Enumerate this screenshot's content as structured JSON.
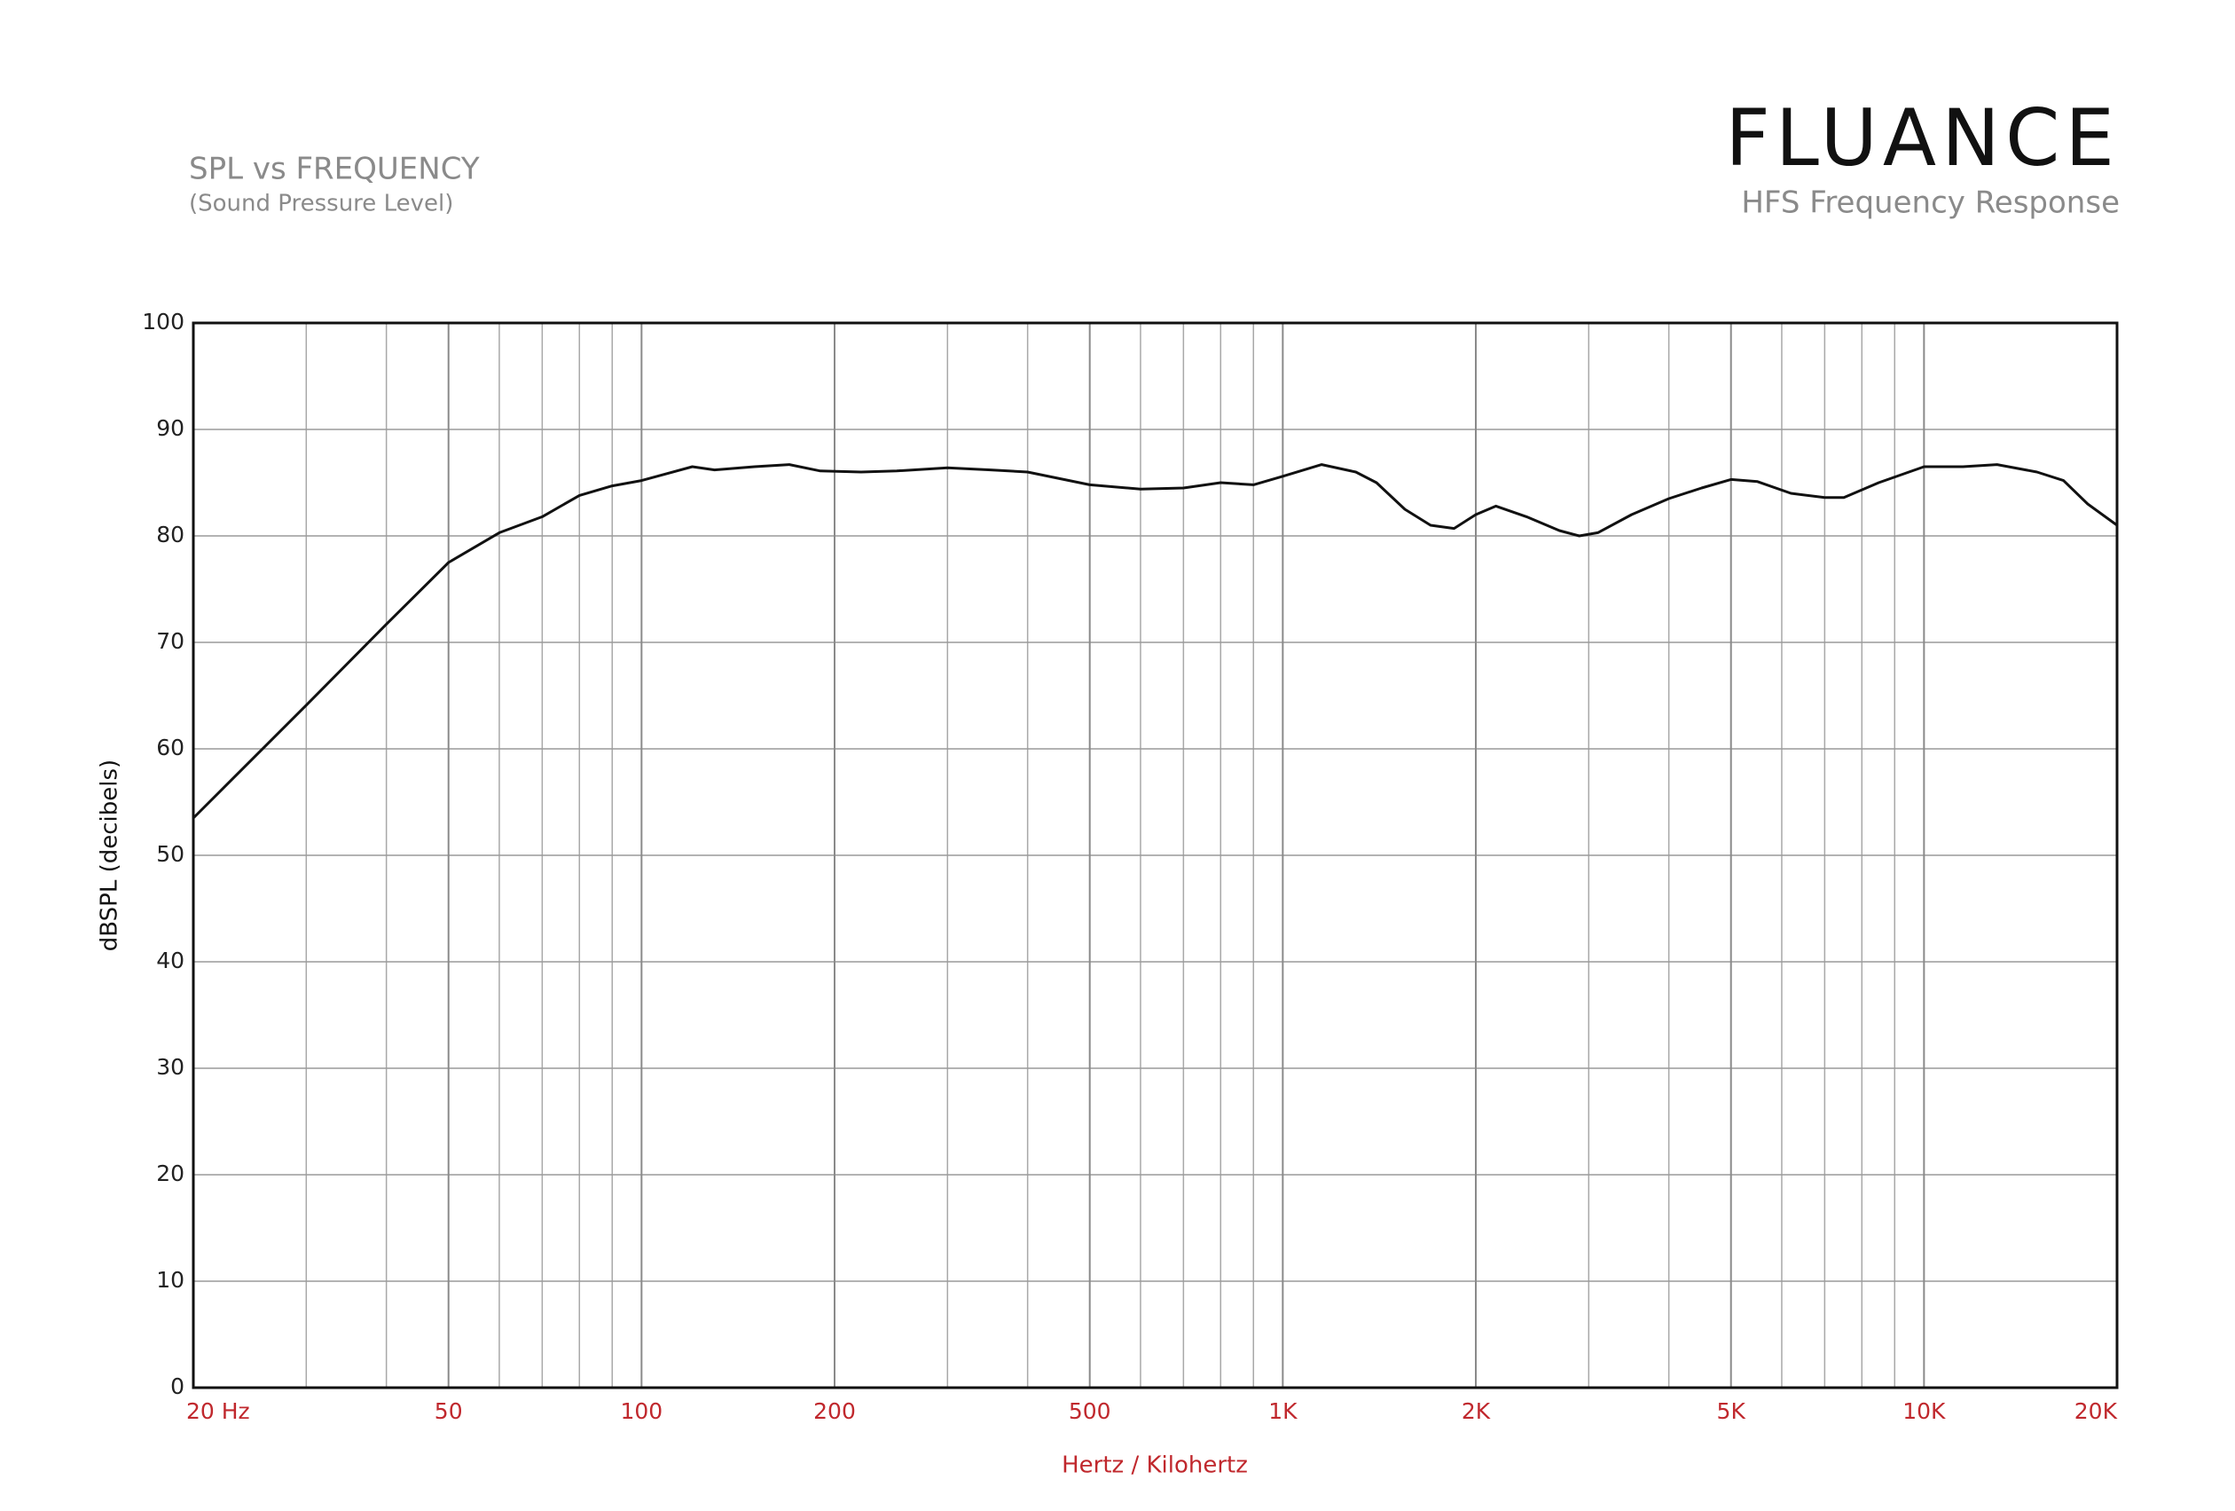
{
  "chart_data": {
    "type": "line",
    "title": "SPL vs FREQUENCY",
    "subtitle": "(Sound Pressure Level)",
    "brand": "FLUANCE",
    "chart_caption": "HFS Frequency Response",
    "y_label": "dBSPL (decibels)",
    "x_label": "Hertz / Kilohertz",
    "x_scale": "log",
    "grid": true,
    "xlim": [
      20,
      20000
    ],
    "ylim": [
      0,
      100
    ],
    "yticks": [
      0,
      10,
      20,
      30,
      40,
      50,
      60,
      70,
      80,
      90,
      100
    ],
    "xticks": [
      {
        "value": 20,
        "label": "20  Hz"
      },
      50,
      100,
      200,
      500,
      {
        "value": 1000,
        "label": "1K"
      },
      {
        "value": 2000,
        "label": "2K"
      },
      {
        "value": 5000,
        "label": "5K"
      },
      {
        "value": 10000,
        "label": "10K"
      },
      {
        "value": 20000,
        "label": "20K"
      }
    ],
    "minor_xticks": [
      30,
      40,
      60,
      70,
      80,
      90,
      300,
      400,
      600,
      700,
      800,
      900,
      3000,
      4000,
      6000,
      7000,
      8000,
      9000
    ],
    "series": [
      {
        "name": "HFS",
        "color": "#111111",
        "x": [
          20,
          30,
          40,
          50,
          60,
          70,
          80,
          90,
          100,
          120,
          130,
          150,
          170,
          190,
          220,
          250,
          300,
          350,
          400,
          500,
          600,
          700,
          800,
          900,
          1000,
          1150,
          1300,
          1400,
          1550,
          1700,
          1850,
          2000,
          2150,
          2400,
          2700,
          2900,
          3100,
          3500,
          4000,
          4500,
          5000,
          5500,
          6200,
          7000,
          7500,
          8500,
          10000,
          11500,
          13000,
          15000,
          16500,
          18000,
          20000
        ],
        "values": [
          53.5,
          64.1,
          71.7,
          77.5,
          80.3,
          81.8,
          83.8,
          84.7,
          85.2,
          86.5,
          86.2,
          86.5,
          86.7,
          86.1,
          86.0,
          86.1,
          86.4,
          86.2,
          86.0,
          84.8,
          84.4,
          84.5,
          85.0,
          84.8,
          85.6,
          86.7,
          86.0,
          85.0,
          82.5,
          81.0,
          80.7,
          82.0,
          82.8,
          81.8,
          80.5,
          80.0,
          80.3,
          82.0,
          83.5,
          84.5,
          85.3,
          85.1,
          84.0,
          83.6,
          83.6,
          85.0,
          86.5,
          86.5,
          86.7,
          86.0,
          85.2,
          83.0,
          81.0
        ]
      }
    ]
  }
}
